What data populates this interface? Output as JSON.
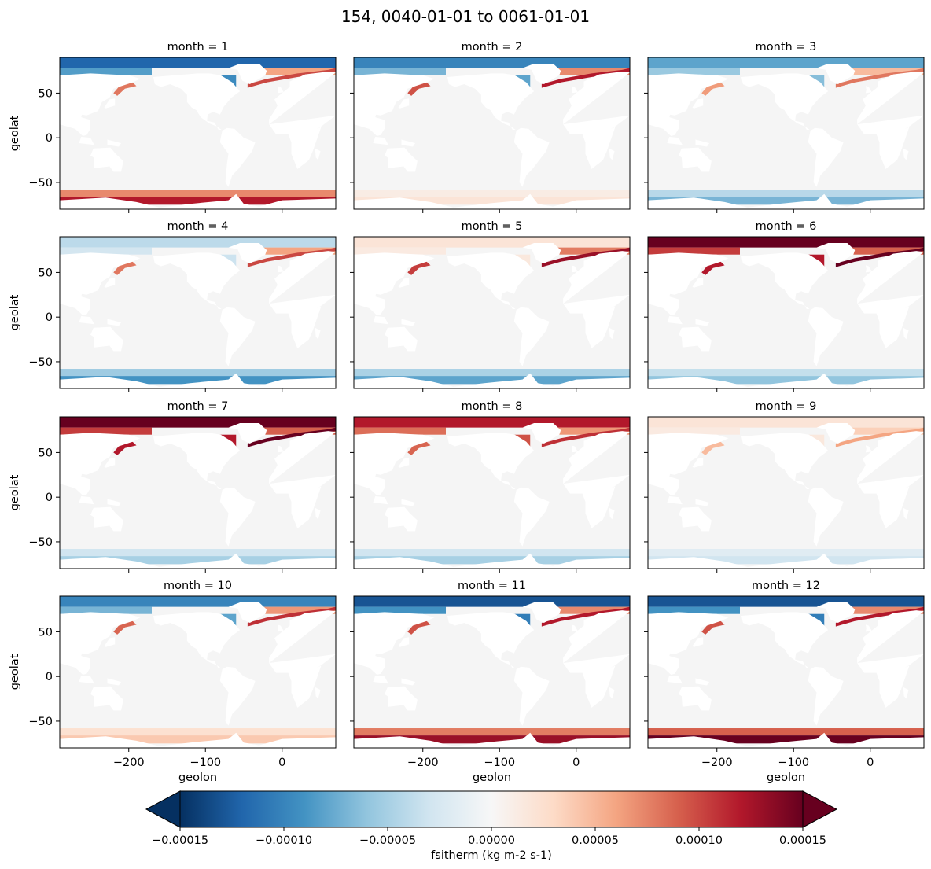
{
  "chart_data": {
    "type": "heatmap",
    "title": "154, 0040-01-01 to 0061-01-01",
    "variable": "fsitherm",
    "xlabel": "geolon",
    "ylabel": "geolat",
    "xlim": [
      -290,
      70
    ],
    "ylim": [
      -80,
      90
    ],
    "xticks": [
      -200,
      -100,
      0
    ],
    "yticks": [
      -50,
      0,
      50
    ],
    "land_color": "#f5f5f5",
    "colormap": "RdBu_r",
    "colorbar": {
      "label": "fsitherm (kg m-2 s-1)",
      "vmin": -0.00015,
      "vmax": 0.00015,
      "extend": "both",
      "ticks": [
        -0.00015,
        -0.0001,
        -5e-05,
        0,
        5e-05,
        0.0001,
        0.00015
      ],
      "tick_labels": [
        "−0.00015",
        "−0.00010",
        "−0.00005",
        "0.00000",
        "0.00005",
        "0.00010",
        "0.00015"
      ]
    },
    "panels": [
      {
        "title": "month = 1",
        "arctic": -0.00012,
        "atlantic": 0.0001,
        "antarctic": 0.00012
      },
      {
        "title": "month = 2",
        "arctic": -0.0001,
        "atlantic": 0.00012,
        "antarctic": 2e-05
      },
      {
        "title": "month = 3",
        "arctic": -8e-05,
        "atlantic": 8e-05,
        "antarctic": -7e-05
      },
      {
        "title": "month = 4",
        "arctic": -4e-05,
        "atlantic": 0.0001,
        "antarctic": -9e-05
      },
      {
        "title": "month = 5",
        "arctic": 2e-05,
        "atlantic": 0.00013,
        "antarctic": -8e-05
      },
      {
        "title": "month = 6",
        "arctic": 0.00015,
        "atlantic": 0.00015,
        "antarctic": -6e-05
      },
      {
        "title": "month = 7",
        "arctic": 0.00015,
        "atlantic": 0.00015,
        "antarctic": -5e-05
      },
      {
        "title": "month = 8",
        "arctic": 0.00012,
        "atlantic": 0.00011,
        "antarctic": -5e-05
      },
      {
        "title": "month = 9",
        "arctic": 2e-05,
        "atlantic": 6e-05,
        "antarctic": -3e-05
      },
      {
        "title": "month = 10",
        "arctic": -0.0001,
        "atlantic": 0.00011,
        "antarctic": 4e-05
      },
      {
        "title": "month = 11",
        "arctic": -0.00013,
        "atlantic": 0.00012,
        "antarctic": 0.00013
      },
      {
        "title": "month = 12",
        "arctic": -0.00013,
        "atlantic": 0.00012,
        "antarctic": 0.00015
      }
    ]
  }
}
